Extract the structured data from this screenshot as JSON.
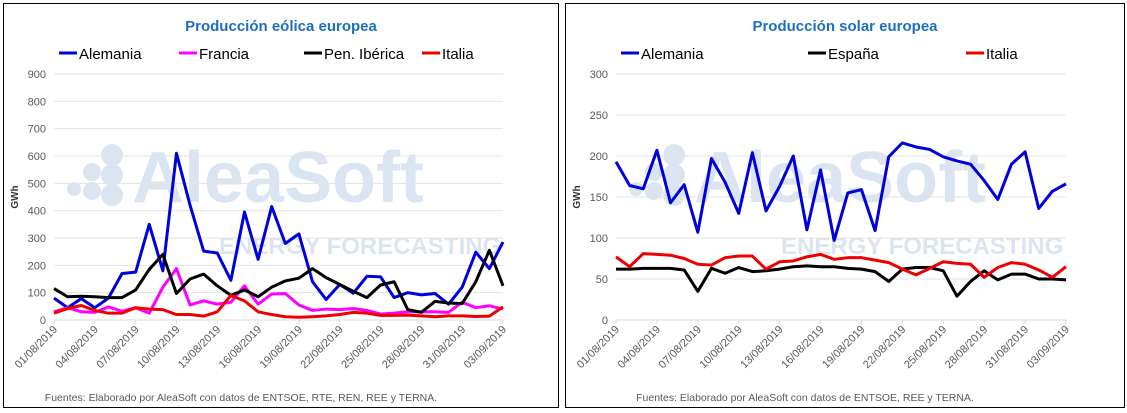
{
  "colors": {
    "Alemania": "#0000dd",
    "Francia": "#ff00ff",
    "Pen. Ibérica": "#000000",
    "España": "#000000",
    "Italia": "#ee0000"
  },
  "watermark": {
    "brand": "AleaSoft",
    "tagline": "ENERGY FORECASTING"
  },
  "chart_data": [
    {
      "type": "line",
      "title": "Producción eólica europea",
      "ylabel": "GWh",
      "ylim": [
        0,
        900
      ],
      "yticks": [
        0,
        100,
        200,
        300,
        400,
        500,
        600,
        700,
        800,
        900
      ],
      "x_start": "01/08/2019",
      "x_end": "03/09/2019",
      "xtick_labels": [
        "01/08/2019",
        "04/08/2019",
        "07/08/2019",
        "10/08/2019",
        "13/08/2019",
        "16/08/2019",
        "19/08/2019",
        "22/08/2019",
        "25/08/2019",
        "28/08/2019",
        "31/08/2019",
        "03/09/2019"
      ],
      "grid": true,
      "legend": "top",
      "footer": "Fuentes: Elaborado por AleaSoft con datos de ENTSOE, RTE, REN, REE y TERNA.",
      "series": [
        {
          "name": "Alemania",
          "values": [
            80,
            45,
            78,
            45,
            80,
            170,
            175,
            350,
            180,
            610,
            420,
            252,
            245,
            145,
            395,
            222,
            415,
            280,
            315,
            140,
            75,
            130,
            98,
            160,
            158,
            82,
            100,
            92,
            97,
            58,
            120,
            248,
            188,
            285
          ]
        },
        {
          "name": "Francia",
          "values": [
            30,
            45,
            30,
            28,
            48,
            32,
            45,
            25,
            120,
            188,
            55,
            70,
            58,
            65,
            125,
            58,
            95,
            97,
            55,
            35,
            40,
            38,
            42,
            35,
            22,
            25,
            30,
            30,
            30,
            28,
            65,
            45,
            52,
            40
          ]
        },
        {
          "name": "Pen. Ibérica",
          "values": [
            115,
            85,
            87,
            85,
            82,
            82,
            110,
            185,
            240,
            97,
            150,
            168,
            125,
            90,
            110,
            85,
            120,
            143,
            153,
            188,
            155,
            130,
            105,
            82,
            128,
            140,
            38,
            28,
            68,
            62,
            60,
            140,
            255,
            125
          ]
        },
        {
          "name": "Italia",
          "values": [
            25,
            42,
            53,
            35,
            25,
            25,
            45,
            40,
            38,
            20,
            20,
            14,
            30,
            90,
            70,
            30,
            20,
            12,
            10,
            12,
            15,
            20,
            28,
            25,
            17,
            17,
            18,
            15,
            12,
            15,
            15,
            13,
            14,
            48
          ]
        }
      ]
    },
    {
      "type": "line",
      "title": "Producción solar europea",
      "ylabel": "GWh",
      "ylim": [
        0,
        300
      ],
      "yticks": [
        0,
        50,
        100,
        150,
        200,
        250,
        300
      ],
      "x_start": "01/08/2019",
      "x_end": "03/09/2019",
      "xtick_labels": [
        "01/08/2019",
        "04/08/2019",
        "07/08/2019",
        "10/08/2019",
        "13/08/2019",
        "16/08/2019",
        "19/08/2019",
        "22/08/2019",
        "25/08/2019",
        "28/08/2019",
        "31/08/2019",
        "03/09/2019"
      ],
      "grid": true,
      "legend": "top",
      "footer": "Fuentes: Elaborado por AleaSoft con datos de ENTSOE, REE y TERNA.",
      "series": [
        {
          "name": "Alemania",
          "values": [
            193,
            164,
            160,
            207,
            143,
            165,
            107,
            197,
            168,
            130,
            204,
            133,
            163,
            200,
            110,
            183,
            97,
            155,
            159,
            109,
            199,
            216,
            211,
            208,
            199,
            194,
            190,
            170,
            147,
            190,
            205,
            136,
            157,
            166
          ]
        },
        {
          "name": "España",
          "values": [
            62,
            62,
            63,
            63,
            63,
            61,
            35,
            63,
            57,
            64,
            59,
            60,
            62,
            65,
            66,
            65,
            65,
            63,
            62,
            59,
            47,
            62,
            64,
            64,
            60,
            29,
            47,
            60,
            49,
            56,
            56,
            50,
            50,
            49
          ]
        },
        {
          "name": "Italia",
          "values": [
            77,
            65,
            81,
            80,
            79,
            75,
            68,
            67,
            76,
            78,
            78,
            62,
            71,
            72,
            77,
            80,
            74,
            76,
            76,
            73,
            70,
            62,
            55,
            63,
            71,
            69,
            68,
            52,
            64,
            70,
            68,
            61,
            52,
            65
          ]
        }
      ]
    }
  ]
}
